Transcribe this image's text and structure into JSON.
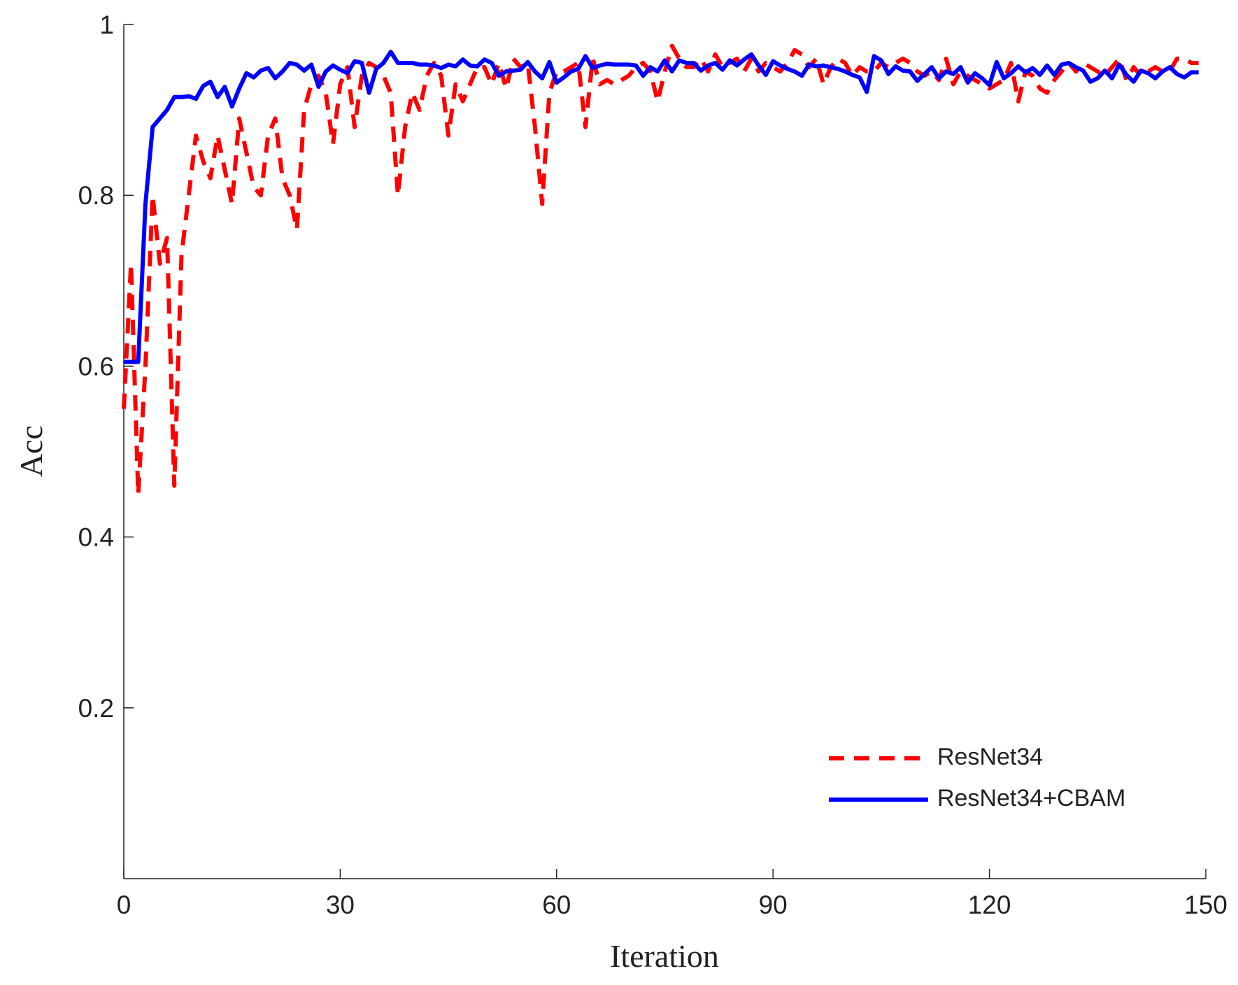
{
  "chart_data": {
    "type": "line",
    "xlabel": "Iteration",
    "ylabel": "Acc",
    "xlim": [
      0,
      150
    ],
    "xticks": [
      0,
      30,
      60,
      90,
      120,
      150
    ],
    "ylim": [
      0,
      1
    ],
    "yticks": [
      0.2,
      0.4,
      0.6,
      0.8,
      1
    ],
    "legend": "lower right",
    "x": [
      0,
      1,
      2,
      3,
      4,
      5,
      6,
      7,
      8,
      9,
      10,
      11,
      12,
      13,
      14,
      15,
      16,
      17,
      18,
      19,
      20,
      21,
      22,
      23,
      24,
      25,
      26,
      27,
      28,
      29,
      30,
      31,
      32,
      33,
      34,
      35,
      36,
      37,
      38,
      39,
      40,
      41,
      42,
      43,
      44,
      45,
      46,
      47,
      48,
      49,
      50,
      51,
      52,
      53,
      54,
      55,
      56,
      57,
      58,
      59,
      60,
      61,
      62,
      63,
      64,
      65,
      66,
      67,
      68,
      69,
      70,
      71,
      72,
      73,
      74,
      75,
      76,
      77,
      78,
      79,
      80,
      81,
      82,
      83,
      84,
      85,
      86,
      87,
      88,
      89,
      90,
      91,
      92,
      93,
      94,
      95,
      96,
      97,
      98,
      99,
      100,
      101,
      102,
      103,
      104,
      105,
      106,
      107,
      108,
      109,
      110,
      111,
      112,
      113,
      114,
      115,
      116,
      117,
      118,
      119,
      120,
      121,
      122,
      123,
      124,
      125,
      126,
      127,
      128,
      129,
      130,
      131,
      132,
      133,
      134,
      135,
      136,
      137,
      138,
      139,
      140,
      141,
      142,
      143,
      144,
      145,
      146,
      147,
      148,
      149
    ],
    "series": [
      {
        "name": "ResNet34",
        "color": "#ff0000",
        "dash": true,
        "values": [
          0.55,
          0.72,
          0.45,
          0.6,
          0.8,
          0.72,
          0.75,
          0.46,
          0.73,
          0.8,
          0.87,
          0.84,
          0.82,
          0.87,
          0.83,
          0.79,
          0.89,
          0.85,
          0.81,
          0.8,
          0.87,
          0.89,
          0.82,
          0.8,
          0.76,
          0.9,
          0.93,
          0.94,
          0.92,
          0.86,
          0.93,
          0.95,
          0.88,
          0.94,
          0.955,
          0.95,
          0.94,
          0.92,
          0.8,
          0.88,
          0.92,
          0.9,
          0.94,
          0.955,
          0.94,
          0.87,
          0.93,
          0.91,
          0.93,
          0.95,
          0.95,
          0.93,
          0.955,
          0.925,
          0.96,
          0.95,
          0.955,
          0.88,
          0.79,
          0.92,
          0.945,
          0.945,
          0.95,
          0.955,
          0.88,
          0.96,
          0.93,
          0.935,
          0.93,
          0.935,
          0.94,
          0.95,
          0.955,
          0.945,
          0.91,
          0.945,
          0.975,
          0.96,
          0.95,
          0.95,
          0.96,
          0.945,
          0.965,
          0.95,
          0.955,
          0.96,
          0.945,
          0.96,
          0.945,
          0.955,
          0.95,
          0.945,
          0.955,
          0.97,
          0.965,
          0.95,
          0.96,
          0.93,
          0.95,
          0.96,
          0.955,
          0.94,
          0.95,
          0.945,
          0.945,
          0.955,
          0.95,
          0.955,
          0.96,
          0.955,
          0.945,
          0.94,
          0.945,
          0.935,
          0.96,
          0.93,
          0.945,
          0.94,
          0.935,
          0.93,
          0.925,
          0.93,
          0.935,
          0.955,
          0.91,
          0.945,
          0.94,
          0.925,
          0.92,
          0.935,
          0.945,
          0.955,
          0.945,
          0.955,
          0.95,
          0.945,
          0.94,
          0.95,
          0.96,
          0.935,
          0.95,
          0.94,
          0.945,
          0.95,
          0.945,
          0.945,
          0.96,
          0.96,
          0.955,
          0.955
        ]
      },
      {
        "name": "ResNet34+CBAM",
        "color": "#0000ff",
        "dash": false,
        "values": [
          0.605,
          0.605,
          0.605,
          0.79,
          0.88,
          0.89,
          0.9,
          0.915,
          0.915,
          0.916,
          0.913,
          0.928,
          0.933,
          0.915,
          0.927,
          0.904,
          0.925,
          0.943,
          0.938,
          0.946,
          0.949,
          0.937,
          0.945,
          0.955,
          0.953,
          0.946,
          0.953,
          0.927,
          0.945,
          0.952,
          0.947,
          0.943,
          0.957,
          0.955,
          0.92,
          0.948,
          0.955,
          0.968,
          0.955,
          0.955,
          0.955,
          0.953,
          0.953,
          0.952,
          0.949,
          0.953,
          0.951,
          0.959,
          0.952,
          0.951,
          0.959,
          0.955,
          0.94,
          0.945,
          0.946,
          0.947,
          0.956,
          0.945,
          0.937,
          0.956,
          0.932,
          0.938,
          0.945,
          0.948,
          0.963,
          0.949,
          0.952,
          0.954,
          0.953,
          0.953,
          0.953,
          0.952,
          0.94,
          0.95,
          0.945,
          0.958,
          0.945,
          0.958,
          0.955,
          0.955,
          0.946,
          0.952,
          0.955,
          0.947,
          0.958,
          0.952,
          0.959,
          0.965,
          0.952,
          0.941,
          0.957,
          0.952,
          0.948,
          0.945,
          0.94,
          0.953,
          0.951,
          0.952,
          0.95,
          0.948,
          0.945,
          0.941,
          0.938,
          0.921,
          0.963,
          0.958,
          0.942,
          0.951,
          0.946,
          0.945,
          0.934,
          0.942,
          0.95,
          0.937,
          0.945,
          0.942,
          0.95,
          0.932,
          0.943,
          0.937,
          0.929,
          0.956,
          0.937,
          0.943,
          0.951,
          0.944,
          0.949,
          0.941,
          0.952,
          0.941,
          0.953,
          0.955,
          0.95,
          0.946,
          0.933,
          0.937,
          0.946,
          0.937,
          0.953,
          0.941,
          0.933,
          0.946,
          0.943,
          0.937,
          0.945,
          0.95,
          0.942,
          0.938,
          0.944,
          0.944
        ]
      }
    ]
  }
}
